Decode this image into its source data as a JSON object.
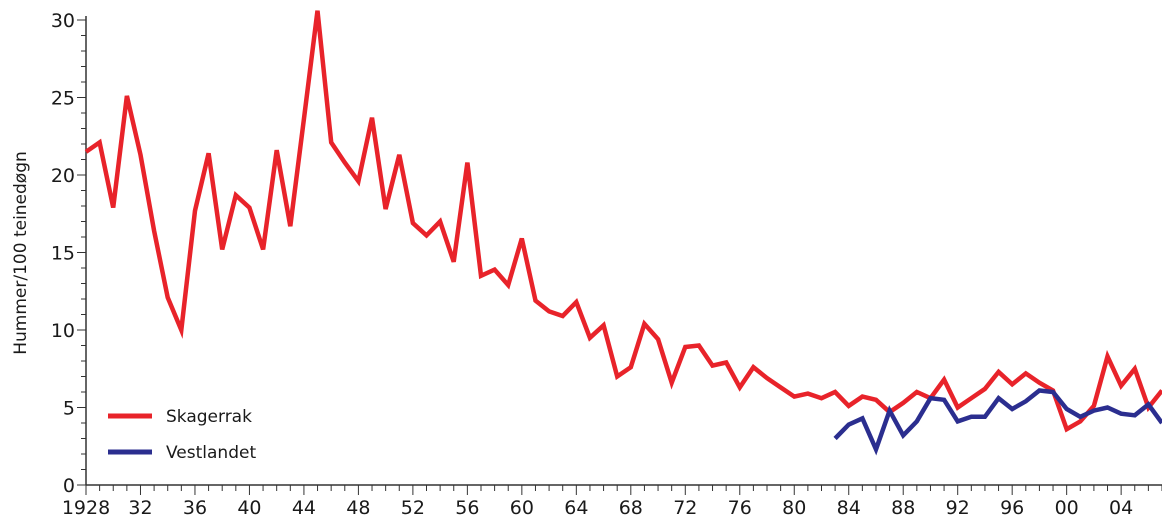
{
  "chart_data": {
    "type": "line",
    "title": "",
    "xlabel": "",
    "ylabel": "Hummer/100 teinedøgn",
    "xlim": [
      1928,
      2007
    ],
    "ylim": [
      0,
      30
    ],
    "y_ticks": [
      0,
      5,
      10,
      15,
      20,
      25,
      30
    ],
    "y_tick_labels": [
      "0",
      "5",
      "10",
      "15",
      "20",
      "25",
      "30"
    ],
    "x_tick_labels": [
      {
        "year": 1928,
        "label": "1928"
      },
      {
        "year": 1932,
        "label": "32"
      },
      {
        "year": 1936,
        "label": "36"
      },
      {
        "year": 1940,
        "label": "40"
      },
      {
        "year": 1944,
        "label": "44"
      },
      {
        "year": 1948,
        "label": "48"
      },
      {
        "year": 1952,
        "label": "52"
      },
      {
        "year": 1956,
        "label": "56"
      },
      {
        "year": 1960,
        "label": "60"
      },
      {
        "year": 1964,
        "label": "64"
      },
      {
        "year": 1968,
        "label": "68"
      },
      {
        "year": 1972,
        "label": "72"
      },
      {
        "year": 1976,
        "label": "76"
      },
      {
        "year": 1980,
        "label": "80"
      },
      {
        "year": 1984,
        "label": "84"
      },
      {
        "year": 1988,
        "label": "88"
      },
      {
        "year": 1992,
        "label": "92"
      },
      {
        "year": 1996,
        "label": "96"
      },
      {
        "year": 2000,
        "label": "00"
      },
      {
        "year": 2004,
        "label": "04"
      }
    ],
    "grid": false,
    "legend_position": "bottom-left",
    "series": [
      {
        "name": "Skagerrak",
        "color": "#e8232a",
        "x": [
          1928,
          1929,
          1930,
          1931,
          1932,
          1933,
          1934,
          1935,
          1936,
          1937,
          1938,
          1939,
          1940,
          1941,
          1942,
          1943,
          1944,
          1945,
          1946,
          1947,
          1948,
          1949,
          1950,
          1951,
          1952,
          1953,
          1954,
          1955,
          1956,
          1957,
          1958,
          1959,
          1960,
          1961,
          1962,
          1963,
          1964,
          1965,
          1966,
          1967,
          1968,
          1969,
          1970,
          1971,
          1972,
          1973,
          1974,
          1975,
          1976,
          1977,
          1978,
          1979,
          1980,
          1981,
          1982,
          1983,
          1984,
          1985,
          1986,
          1987,
          1988,
          1989,
          1990,
          1991,
          1992,
          1993,
          1994,
          1995,
          1996,
          1997,
          1998,
          1999,
          2000,
          2001,
          2002,
          2003,
          2004,
          2005,
          2006,
          2007
        ],
        "y": [
          21.5,
          22.1,
          17.9,
          25.1,
          21.3,
          16.4,
          12.1,
          10.0,
          17.7,
          21.4,
          15.2,
          18.7,
          17.9,
          15.2,
          21.6,
          16.7,
          23.6,
          30.6,
          22.1,
          20.8,
          19.6,
          23.7,
          17.8,
          21.3,
          16.9,
          16.1,
          17.0,
          14.4,
          20.8,
          13.5,
          13.9,
          12.9,
          15.9,
          11.9,
          11.2,
          10.9,
          11.8,
          9.5,
          10.3,
          7.0,
          7.6,
          10.4,
          9.4,
          6.6,
          8.9,
          9.0,
          7.7,
          7.9,
          6.3,
          7.6,
          6.9,
          6.3,
          5.7,
          5.9,
          5.6,
          6.0,
          5.1,
          5.7,
          5.5,
          4.7,
          5.3,
          6.0,
          5.6,
          6.8,
          5.0,
          5.6,
          6.2,
          7.3,
          6.5,
          7.2,
          6.6,
          6.1,
          3.6,
          4.1,
          5.1,
          8.3,
          6.4,
          7.5,
          5.0,
          6.1
        ]
      },
      {
        "name": "Vestlandet",
        "color": "#2b2e8f",
        "x": [
          1983,
          1984,
          1985,
          1986,
          1987,
          1988,
          1989,
          1990,
          1991,
          1992,
          1993,
          1994,
          1995,
          1996,
          1997,
          1998,
          1999,
          2000,
          2001,
          2002,
          2003,
          2004,
          2005,
          2006,
          2007
        ],
        "y": [
          3.0,
          3.9,
          4.3,
          2.3,
          4.8,
          3.2,
          4.1,
          5.6,
          5.5,
          4.1,
          4.4,
          4.4,
          5.6,
          4.9,
          5.4,
          6.1,
          6.0,
          4.9,
          4.4,
          4.8,
          5.0,
          4.6,
          4.5,
          5.2,
          4.0
        ]
      }
    ]
  }
}
